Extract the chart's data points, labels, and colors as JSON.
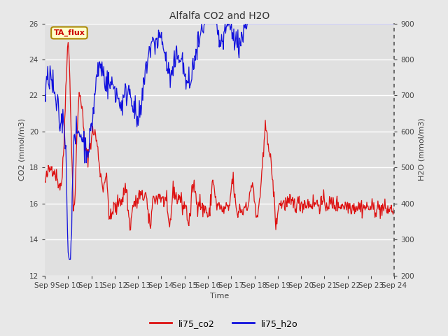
{
  "title": "Alfalfa CO2 and H2O",
  "xlabel": "Time",
  "ylabel_left": "CO2 (mmol/m3)",
  "ylabel_right": "H2O (mmol/m3)",
  "annotation_text": "TA_flux",
  "annotation_color": "#cc0000",
  "annotation_bg": "#ffffcc",
  "annotation_border": "#aa8800",
  "ylim_left": [
    12,
    26
  ],
  "ylim_right": [
    200,
    900
  ],
  "yticks_left": [
    12,
    14,
    16,
    18,
    20,
    22,
    24,
    26
  ],
  "yticks_right": [
    200,
    300,
    400,
    500,
    600,
    700,
    800,
    900
  ],
  "line_co2_color": "#dd1111",
  "line_h2o_color": "#1111dd",
  "legend_co2": "li75_co2",
  "legend_h2o": "li75_h2o",
  "bg_color": "#e8e8e8",
  "plot_bg": "#e0e0e0",
  "grid_color": "#ffffff",
  "num_points": 600
}
